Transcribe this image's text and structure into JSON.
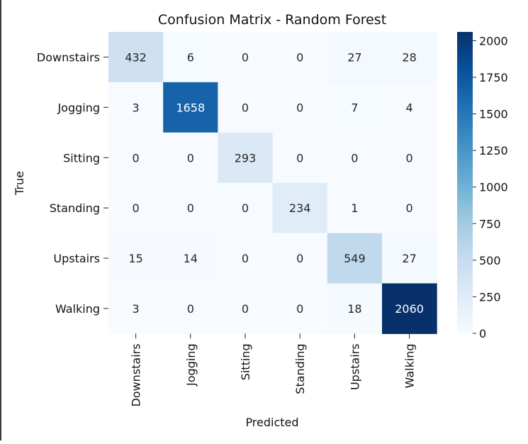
{
  "chart_data": {
    "type": "heatmap",
    "title": "Confusion Matrix - Random Forest",
    "xlabel": "Predicted",
    "ylabel": "True",
    "row_labels": [
      "Downstairs",
      "Jogging",
      "Sitting",
      "Standing",
      "Upstairs",
      "Walking"
    ],
    "col_labels": [
      "Downstairs",
      "Jogging",
      "Sitting",
      "Standing",
      "Upstairs",
      "Walking"
    ],
    "values": [
      [
        432,
        6,
        0,
        0,
        27,
        28
      ],
      [
        3,
        1658,
        0,
        0,
        7,
        4
      ],
      [
        0,
        0,
        293,
        0,
        0,
        0
      ],
      [
        0,
        0,
        0,
        234,
        1,
        0
      ],
      [
        15,
        14,
        0,
        0,
        549,
        27
      ],
      [
        3,
        0,
        0,
        0,
        18,
        2060
      ]
    ],
    "colormap": "Blues",
    "color_range": [
      0,
      2060
    ],
    "colorbar_ticks": [
      0,
      250,
      500,
      750,
      1000,
      1250,
      1500,
      1750,
      2000
    ],
    "colorbar_ticks_text": [
      "0",
      "250",
      "500",
      "750",
      "1000",
      "1250",
      "1500",
      "1750",
      "2000"
    ]
  }
}
